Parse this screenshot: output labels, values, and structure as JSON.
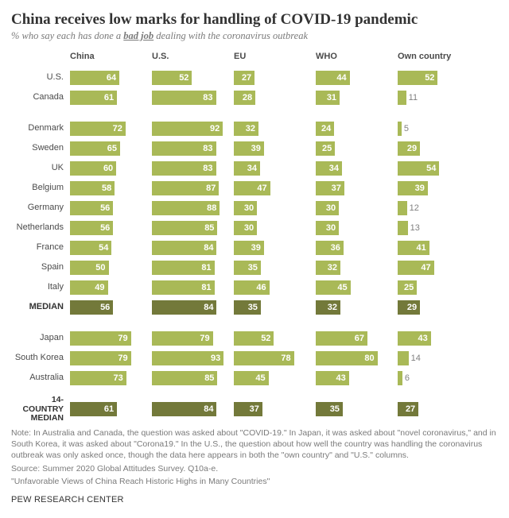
{
  "title": "China receives low marks for handling of COVID-19 pandemic",
  "subtitle_pre": "% who say each has done a ",
  "subtitle_emph": "bad job",
  "subtitle_post": " dealing with the coronavirus outbreak",
  "columns": [
    "China",
    "U.S.",
    "EU",
    "WHO",
    "Own country"
  ],
  "max_value": 100,
  "bar_color": "#a9b957",
  "bar_color_dark": "#73793a",
  "inside_threshold": 18,
  "groups": [
    {
      "rows": [
        {
          "label": "U.S.",
          "values": [
            64,
            52,
            27,
            44,
            52
          ]
        },
        {
          "label": "Canada",
          "values": [
            61,
            83,
            28,
            31,
            11
          ]
        }
      ]
    },
    {
      "rows": [
        {
          "label": "Denmark",
          "values": [
            72,
            92,
            32,
            24,
            5
          ]
        },
        {
          "label": "Sweden",
          "values": [
            65,
            83,
            39,
            25,
            29
          ]
        },
        {
          "label": "UK",
          "values": [
            60,
            83,
            34,
            34,
            54
          ]
        },
        {
          "label": "Belgium",
          "values": [
            58,
            87,
            47,
            37,
            39
          ]
        },
        {
          "label": "Germany",
          "values": [
            56,
            88,
            30,
            30,
            12
          ]
        },
        {
          "label": "Netherlands",
          "values": [
            56,
            85,
            30,
            30,
            13
          ]
        },
        {
          "label": "France",
          "values": [
            54,
            84,
            39,
            36,
            41
          ]
        },
        {
          "label": "Spain",
          "values": [
            50,
            81,
            35,
            32,
            47
          ]
        },
        {
          "label": "Italy",
          "values": [
            49,
            81,
            46,
            45,
            25
          ]
        },
        {
          "label": "MEDIAN",
          "bold": true,
          "dark": true,
          "values": [
            56,
            84,
            35,
            32,
            29
          ]
        }
      ]
    },
    {
      "rows": [
        {
          "label": "Japan",
          "values": [
            79,
            79,
            52,
            67,
            43
          ]
        },
        {
          "label": "South Korea",
          "values": [
            79,
            93,
            78,
            80,
            14
          ]
        },
        {
          "label": "Australia",
          "values": [
            73,
            85,
            45,
            43,
            6
          ]
        }
      ]
    },
    {
      "rows": [
        {
          "label": "14-COUNTRY MEDIAN",
          "bold": true,
          "dark": true,
          "multiline": true,
          "values": [
            61,
            84,
            37,
            35,
            27
          ]
        }
      ]
    }
  ],
  "note_lines": [
    "Note: In Australia and Canada, the question was asked about \"COVID-19.\" In Japan, it was asked about \"novel coronavirus,\" and in South Korea, it was asked about \"Corona19.\" In the U.S., the question about how well the country was handling the coronavirus outbreak was only asked once, though the data here appears in both the \"own country\" and \"U.S.\" columns.",
    "Source: Summer 2020 Global Attitudes Survey. Q10a-e.",
    "\"Unfavorable Views of China Reach Historic Highs in Many Countries\""
  ],
  "brand": "PEW RESEARCH CENTER"
}
